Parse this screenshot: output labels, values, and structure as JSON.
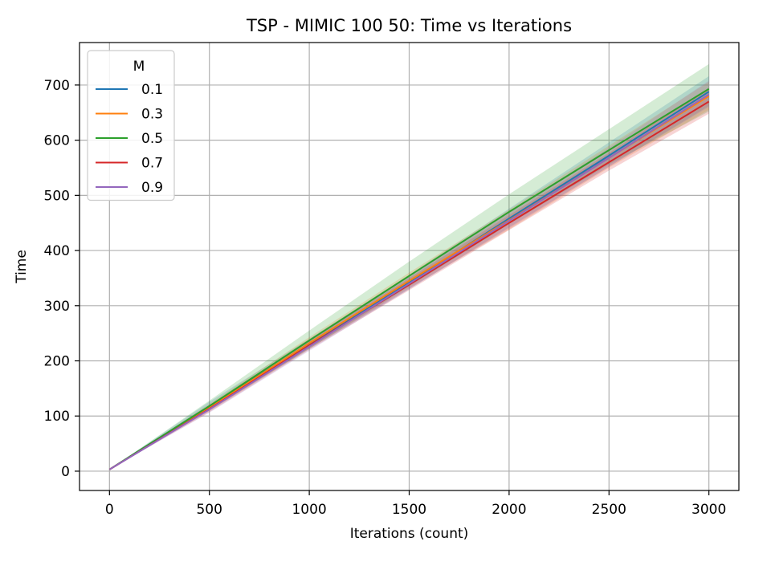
{
  "chart_data": {
    "type": "line",
    "title": "TSP - MIMIC 100 50: Time vs Iterations",
    "xlabel": "Iterations (count)",
    "ylabel": "Time",
    "xlim": [
      -150,
      3150
    ],
    "ylim": [
      -35,
      777
    ],
    "xticks": [
      0,
      500,
      1000,
      1500,
      2000,
      2500,
      3000
    ],
    "yticks": [
      0,
      100,
      200,
      300,
      400,
      500,
      600,
      700
    ],
    "grid": true,
    "legend": {
      "title": "M",
      "placement": "top-left"
    },
    "x": [
      0,
      500,
      1000,
      1500,
      2000,
      2500,
      3000
    ],
    "series": [
      {
        "name": "0.1",
        "color": "#1f77b4",
        "values": [
          3,
          118,
          230,
          342,
          458,
          572,
          688
        ],
        "lower": [
          3,
          112,
          222,
          330,
          442,
          552,
          662
        ],
        "upper": [
          3,
          126,
          240,
          356,
          476,
          596,
          716
        ]
      },
      {
        "name": "0.3",
        "color": "#ff7f0e",
        "values": [
          3,
          115,
          232,
          345,
          455,
          568,
          680
        ],
        "lower": [
          3,
          109,
          222,
          332,
          438,
          550,
          655
        ],
        "upper": [
          3,
          122,
          243,
          360,
          474,
          590,
          706
        ]
      },
      {
        "name": "0.5",
        "color": "#2ca02c",
        "values": [
          3,
          118,
          237,
          354,
          470,
          582,
          693
        ],
        "lower": [
          3,
          110,
          222,
          335,
          448,
          556,
          652
        ],
        "upper": [
          3,
          128,
          255,
          380,
          502,
          620,
          738
        ]
      },
      {
        "name": "0.7",
        "color": "#d62728",
        "values": [
          3,
          113,
          228,
          338,
          450,
          560,
          670
        ],
        "lower": [
          3,
          107,
          220,
          328,
          437,
          545,
          648
        ],
        "upper": [
          3,
          120,
          237,
          350,
          464,
          577,
          695
        ]
      },
      {
        "name": "0.9",
        "color": "#9467bd",
        "values": [
          3,
          112,
          226,
          340,
          454,
          568,
          683
        ],
        "lower": [
          3,
          106,
          218,
          330,
          440,
          552,
          660
        ],
        "upper": [
          3,
          119,
          236,
          352,
          470,
          586,
          708
        ]
      }
    ]
  }
}
